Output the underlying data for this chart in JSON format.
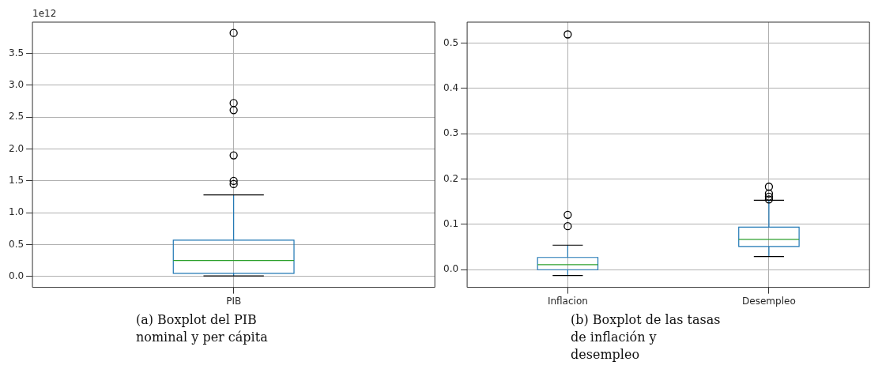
{
  "chart_data": [
    {
      "type": "box",
      "categories": [
        "PIB"
      ],
      "color": "#1f77b4",
      "ylim": [
        -0.17,
        3.99
      ],
      "yticks": [
        {
          "value": 0,
          "label": "0.0"
        },
        {
          "value": 0.5,
          "label": "0.5"
        },
        {
          "value": 1,
          "label": "1.0"
        },
        {
          "value": 1.5,
          "label": "1.5"
        },
        {
          "value": 2,
          "label": "2.0"
        },
        {
          "value": 2.5,
          "label": "2.5"
        },
        {
          "value": 3,
          "label": "3.0"
        },
        {
          "value": 3.5,
          "label": "3.5"
        }
      ],
      "grid": true,
      "legend": false,
      "boxes": [
        {
          "low": 0.01,
          "q1": 0.05,
          "median": 0.25,
          "q3": 0.57,
          "high": 1.28,
          "outliers": [
            1.45,
            1.5,
            1.9,
            2.61,
            2.72,
            3.82
          ]
        }
      ],
      "annotations": [
        "1e12",
        "(a) Boxplot del PIB nominal y per cápita"
      ]
    },
    {
      "type": "box",
      "categories": [
        "Inflacion",
        "Desempleo"
      ],
      "color": "#1f77b4",
      "ylim": [
        -0.039,
        0.546
      ],
      "yticks": [
        {
          "value": 0,
          "label": "0.0"
        },
        {
          "value": 0.1,
          "label": "0.1"
        },
        {
          "value": 0.2,
          "label": "0.2"
        },
        {
          "value": 0.3,
          "label": "0.3"
        },
        {
          "value": 0.4,
          "label": "0.4"
        },
        {
          "value": 0.5,
          "label": "0.5"
        }
      ],
      "grid": true,
      "legend": false,
      "boxes": [
        {
          "low": -0.013,
          "q1": 0.0,
          "median": 0.011,
          "q3": 0.027,
          "high": 0.054,
          "outliers": [
            0.096,
            0.121,
            0.519
          ]
        },
        {
          "low": 0.029,
          "q1": 0.051,
          "median": 0.067,
          "q3": 0.094,
          "high": 0.153,
          "outliers": [
            0.155,
            0.161,
            0.168,
            0.183
          ]
        }
      ],
      "annotations": [
        "(b) Boxplot de las tasas de inflación y desempleo"
      ]
    }
  ]
}
